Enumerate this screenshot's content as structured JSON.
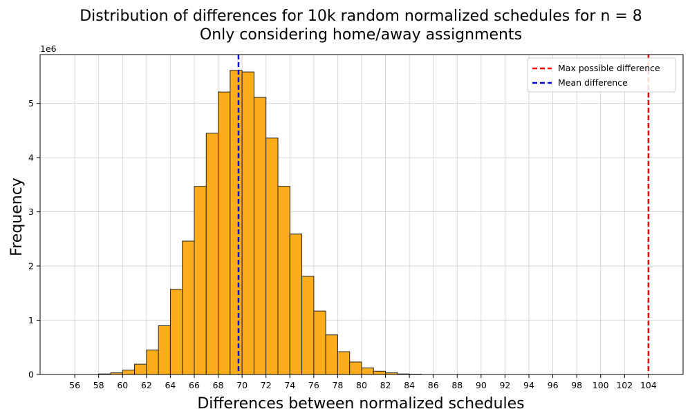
{
  "chart_data": {
    "type": "bar",
    "title_lines": [
      "Distribution of differences for 10k random normalized schedules for n = 8",
      "Only considering home/away assignments"
    ],
    "xlabel": "Differences between normalized schedules",
    "ylabel": "Frequency",
    "y_offset_label": "1e6",
    "xlim": [
      53.1,
      106.9
    ],
    "ylim": [
      0,
      5.9
    ],
    "x_ticks": [
      56,
      58,
      60,
      62,
      64,
      66,
      68,
      70,
      72,
      74,
      76,
      78,
      80,
      82,
      84,
      86,
      88,
      90,
      92,
      94,
      96,
      98,
      100,
      102,
      104
    ],
    "y_ticks": [
      0,
      1,
      2,
      3,
      4,
      5
    ],
    "grid": true,
    "bar_color": "#FDAD1B",
    "bar_edge_color": "#222222",
    "bins": {
      "x": [
        58,
        59,
        60,
        61,
        62,
        63,
        64,
        65,
        66,
        67,
        68,
        69,
        70,
        71,
        72,
        73,
        74,
        75,
        76,
        77,
        78,
        79,
        80,
        81,
        82,
        83,
        84
      ],
      "width": 1,
      "values": [
        0.01,
        0.03,
        0.08,
        0.19,
        0.45,
        0.9,
        1.57,
        2.46,
        3.47,
        4.45,
        5.21,
        5.61,
        5.58,
        5.11,
        4.36,
        3.47,
        2.59,
        1.81,
        1.17,
        0.73,
        0.42,
        0.23,
        0.12,
        0.06,
        0.03,
        0.01,
        0.005
      ]
    },
    "vlines": [
      {
        "name": "Max possible difference",
        "x": 104,
        "color": "#FF0000"
      },
      {
        "name": "Mean difference",
        "x": 69.7,
        "color": "#0000CC"
      }
    ],
    "legend": {
      "position": "upper right",
      "entries": [
        "Max possible difference",
        "Mean difference"
      ]
    }
  }
}
